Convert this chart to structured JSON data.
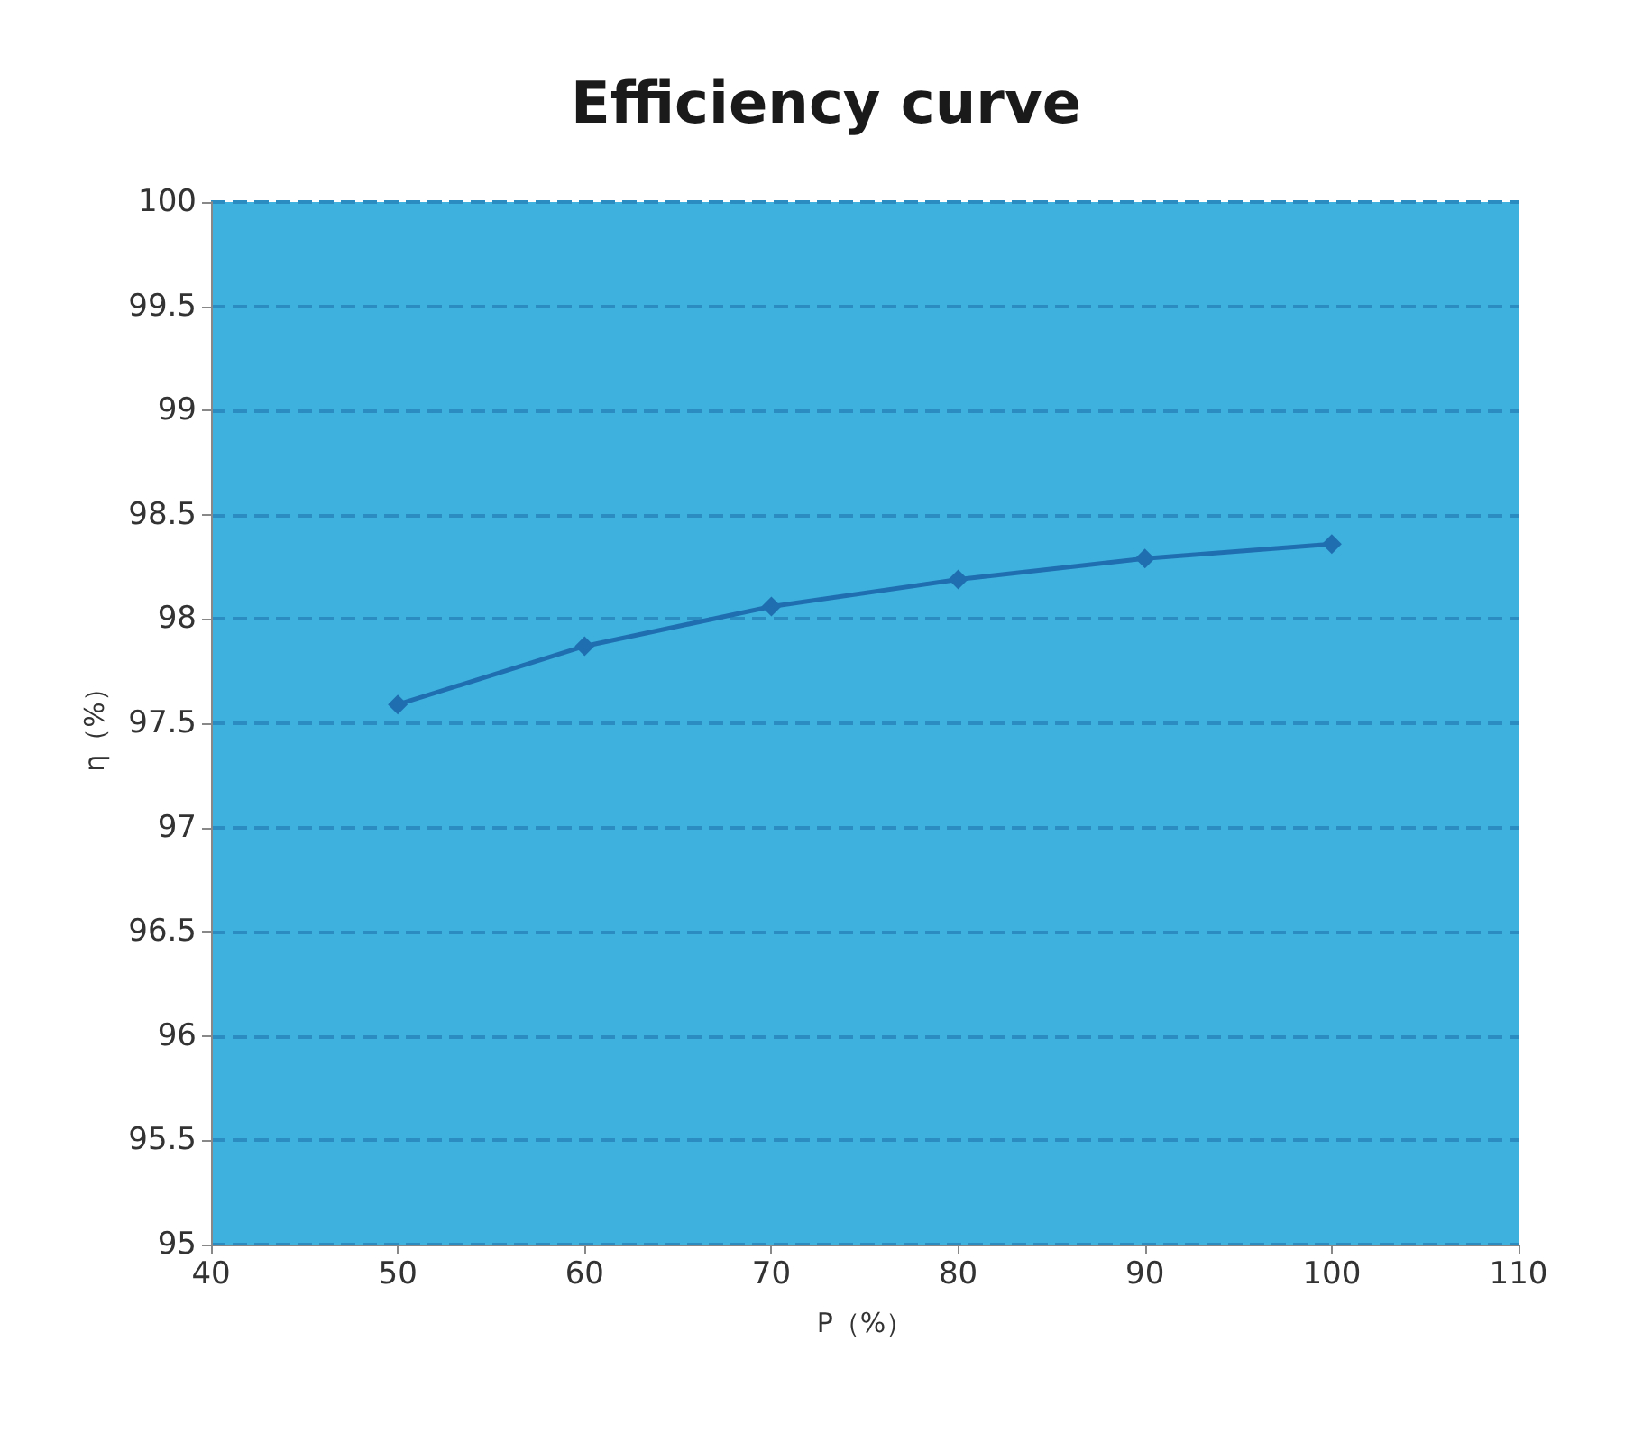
{
  "chart_data": {
    "type": "line",
    "title": "Efficiency curve",
    "xlabel": "P（%）",
    "ylabel": "η（%）",
    "x": [
      50,
      60,
      70,
      80,
      90,
      100
    ],
    "series": [
      {
        "color": "#1f6fb0",
        "values": [
          97.59,
          97.87,
          98.06,
          98.19,
          98.29,
          98.36
        ]
      }
    ],
    "xlim": [
      40,
      110
    ],
    "xticks": [
      40,
      50,
      60,
      70,
      80,
      90,
      100,
      110
    ],
    "ylim": [
      95,
      100
    ],
    "yticks": [
      95,
      95.5,
      96,
      96.5,
      97,
      97.5,
      98,
      98.5,
      99,
      99.5,
      100
    ],
    "grid": "y",
    "marker": "diamond",
    "line_style": "solid"
  }
}
